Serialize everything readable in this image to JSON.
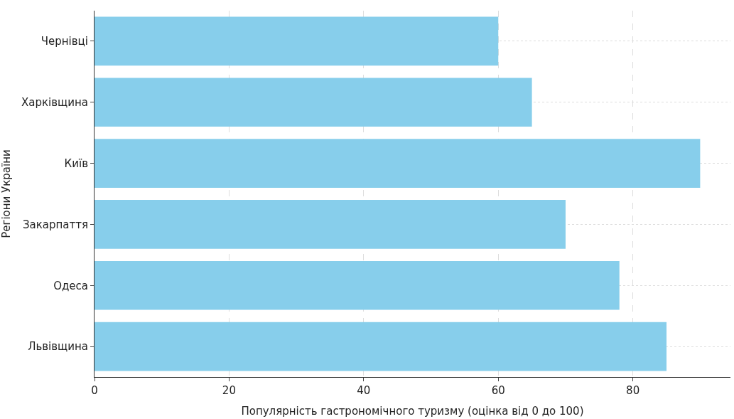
{
  "chart_data": {
    "type": "bar",
    "orientation": "horizontal",
    "xlabel": "Популярність гастрономічного туризму (оцінка від 0 до 100)",
    "ylabel": "Регіони України",
    "categories": [
      "Чернівці",
      "Харківщина",
      "Київ",
      "Закарпаття",
      "Одеса",
      "Львівщина"
    ],
    "values": [
      60,
      65,
      90,
      70,
      78,
      85
    ],
    "color": "#87ceeb",
    "xlim": [
      0,
      94.5
    ],
    "xticks": [
      0,
      20,
      40,
      60,
      80
    ],
    "grid": true
  }
}
